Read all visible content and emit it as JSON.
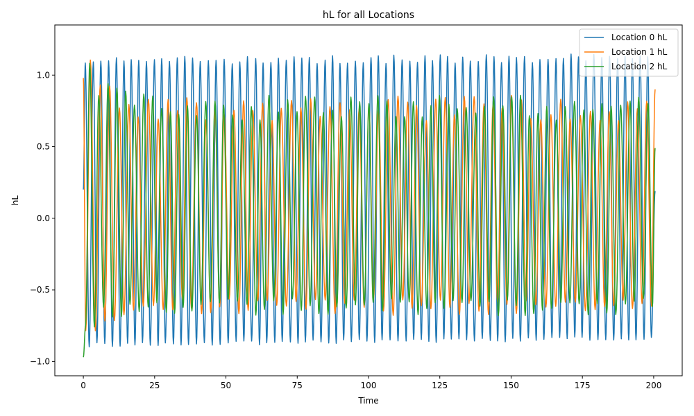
{
  "chart_data": {
    "type": "line",
    "title": "hL for all Locations",
    "xlabel": "Time",
    "ylabel": "hL",
    "xlim": [
      -10,
      210
    ],
    "ylim": [
      -1.1,
      1.35
    ],
    "xticks": [
      0,
      25,
      50,
      75,
      100,
      125,
      150,
      175,
      200
    ],
    "yticks": [
      -1.0,
      -0.5,
      0.0,
      0.5,
      1.0
    ],
    "xtick_labels": [
      "0",
      "25",
      "50",
      "75",
      "100",
      "125",
      "150",
      "175",
      "200"
    ],
    "ytick_labels": [
      "−1.0",
      "−0.5",
      "0.0",
      "0.5",
      "1.0"
    ],
    "grid": false,
    "legend_position": "top-right",
    "series": [
      {
        "name": "Location 0 hL",
        "color": "#1f77b4",
        "period": 2.72,
        "start": 0.2,
        "max_early": 1.1,
        "max_late": 1.12,
        "min_early": -0.88,
        "min_late": -0.83,
        "end": 0.19
      },
      {
        "name": "Location 1 hL",
        "color": "#ff7f0e",
        "period": 3.35,
        "start": 0.98,
        "max_early": 1.23,
        "max_typical": 0.8,
        "min_early": -0.85,
        "min_typical": -0.62,
        "end": 0.9
      },
      {
        "name": "Location 2 hL",
        "color": "#2ca02c",
        "period": 3.15,
        "start": -0.97,
        "max_early": 1.22,
        "max_typical": 0.8,
        "min_early": -0.79,
        "min_typical": -0.62,
        "end": 0.49
      }
    ]
  }
}
